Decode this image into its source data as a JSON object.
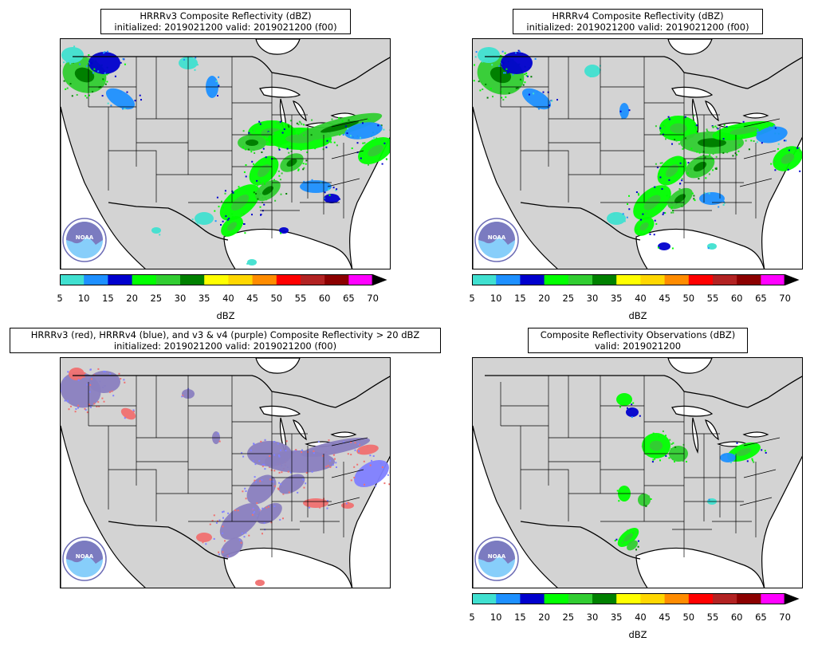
{
  "panels": [
    {
      "id": "v3",
      "title_line1": "HRRRv3 Composite Reflectivity (dBZ)",
      "title_line2": "initialized: 2019021200 valid: 2019021200 (f00)",
      "colorbar": true
    },
    {
      "id": "v4",
      "title_line1": "HRRRv4 Composite Reflectivity (dBZ)",
      "title_line2": "initialized: 2019021200 valid: 2019021200 (f00)",
      "colorbar": true
    },
    {
      "id": "cmp",
      "title_line1": "HRRRv3 (red), HRRRv4 (blue), and v3 & v4 (purple) Composite Reflectivity > 20 dBZ",
      "title_line2": "initialized: 2019021200 valid: 2019021200 (f00)",
      "colorbar": false
    },
    {
      "id": "obs",
      "title_line1": "Composite Reflectivity Observations (dBZ)",
      "title_line2": "valid: 2019021200",
      "colorbar": true
    }
  ],
  "colorbar": {
    "unit_label": "dBZ",
    "ticks": [
      "5",
      "10",
      "15",
      "20",
      "25",
      "30",
      "35",
      "40",
      "45",
      "50",
      "55",
      "60",
      "65",
      "70"
    ],
    "colors": [
      "#40e0d0",
      "#1e90ff",
      "#0000cd",
      "#00ff00",
      "#32cd32",
      "#008000",
      "#ffff00",
      "#ffd700",
      "#ff8c00",
      "#ff0000",
      "#b22222",
      "#8b0000",
      "#ff00ff"
    ]
  },
  "logo": {
    "text": "NOAA"
  },
  "colors": {
    "land": "#d3d3d3",
    "water": "#ffffff",
    "v3_only": "#f07070",
    "v4_only": "#8080ff",
    "both": "#8a7fc0"
  }
}
